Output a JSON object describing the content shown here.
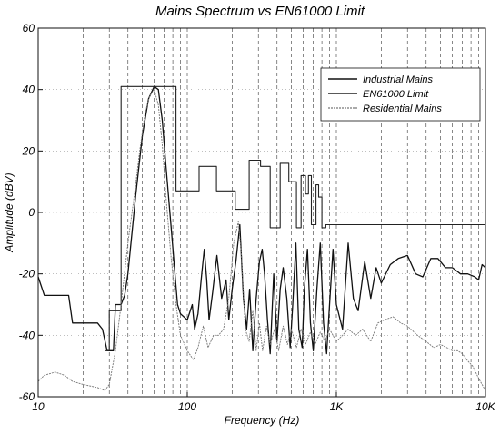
{
  "chart_data": {
    "type": "line",
    "title": "Mains Spectrum vs EN61000 Limit",
    "xlabel": "Frequency (Hz)",
    "ylabel": "Amplitude (dBV)",
    "xscale": "log",
    "xlim": [
      10,
      10000
    ],
    "ylim": [
      -60,
      60
    ],
    "grid": true,
    "legend_position": "top-right",
    "x_ticks": [
      {
        "value": 10,
        "label": "10"
      },
      {
        "value": 100,
        "label": "100"
      },
      {
        "value": 1000,
        "label": "1K"
      },
      {
        "value": 10000,
        "label": "10K"
      }
    ],
    "y_ticks": [
      {
        "value": 60,
        "label": "60"
      },
      {
        "value": 40,
        "label": "40"
      },
      {
        "value": 20,
        "label": "20"
      },
      {
        "value": 0,
        "label": "0"
      },
      {
        "value": -20,
        "label": "-20"
      },
      {
        "value": -40,
        "label": "-40"
      },
      {
        "value": -60,
        "label": "-60"
      }
    ],
    "series": [
      {
        "name": "Industrial Mains",
        "color": "#111111",
        "width": 1.3,
        "points": [
          [
            10,
            -21
          ],
          [
            11,
            -27
          ],
          [
            16,
            -27
          ],
          [
            17,
            -36
          ],
          [
            25,
            -36
          ],
          [
            27,
            -38
          ],
          [
            29,
            -45
          ],
          [
            32,
            -45
          ],
          [
            33,
            -30
          ],
          [
            36,
            -30
          ],
          [
            38,
            -27
          ],
          [
            40,
            -20
          ],
          [
            45,
            5
          ],
          [
            50,
            25
          ],
          [
            55,
            37
          ],
          [
            60,
            41
          ],
          [
            64,
            40
          ],
          [
            68,
            30
          ],
          [
            72,
            15
          ],
          [
            78,
            -5
          ],
          [
            82,
            -18
          ],
          [
            86,
            -30
          ],
          [
            90,
            -33
          ],
          [
            100,
            -35
          ],
          [
            108,
            -30
          ],
          [
            112,
            -38
          ],
          [
            118,
            -33
          ],
          [
            125,
            -20
          ],
          [
            130,
            -12
          ],
          [
            135,
            -22
          ],
          [
            140,
            -35
          ],
          [
            148,
            -26
          ],
          [
            158,
            -14
          ],
          [
            170,
            -28
          ],
          [
            182,
            -22
          ],
          [
            190,
            -35
          ],
          [
            200,
            -25
          ],
          [
            212,
            -16
          ],
          [
            225,
            -4
          ],
          [
            238,
            -28
          ],
          [
            250,
            -38
          ],
          [
            262,
            -25
          ],
          [
            275,
            -45
          ],
          [
            290,
            -28
          ],
          [
            305,
            -16
          ],
          [
            318,
            -12
          ],
          [
            330,
            -20
          ],
          [
            345,
            -35
          ],
          [
            360,
            -46
          ],
          [
            380,
            -20
          ],
          [
            400,
            -42
          ],
          [
            420,
            -25
          ],
          [
            440,
            -18
          ],
          [
            465,
            -28
          ],
          [
            490,
            -44
          ],
          [
            510,
            -30
          ],
          [
            535,
            -10
          ],
          [
            560,
            -38
          ],
          [
            590,
            -44
          ],
          [
            610,
            -25
          ],
          [
            640,
            -12
          ],
          [
            670,
            -36
          ],
          [
            700,
            -45
          ],
          [
            740,
            -25
          ],
          [
            780,
            -10
          ],
          [
            820,
            -36
          ],
          [
            860,
            -46
          ],
          [
            900,
            -30
          ],
          [
            950,
            -12
          ],
          [
            1000,
            -30
          ],
          [
            1100,
            -38
          ],
          [
            1200,
            -10
          ],
          [
            1300,
            -28
          ],
          [
            1400,
            -32
          ],
          [
            1550,
            -16
          ],
          [
            1700,
            -28
          ],
          [
            1850,
            -18
          ],
          [
            2000,
            -23
          ],
          [
            2300,
            -17
          ],
          [
            2600,
            -15
          ],
          [
            3000,
            -14
          ],
          [
            3400,
            -20
          ],
          [
            3800,
            -21
          ],
          [
            4300,
            -15
          ],
          [
            4800,
            -15
          ],
          [
            5400,
            -18
          ],
          [
            6000,
            -18
          ],
          [
            6800,
            -20
          ],
          [
            7600,
            -20
          ],
          [
            8500,
            -21
          ],
          [
            9000,
            -22
          ],
          [
            9500,
            -17
          ],
          [
            10000,
            -18
          ]
        ]
      },
      {
        "name": "EN61000 Limit",
        "color": "#222222",
        "width": 1.1,
        "points": [
          [
            28,
            -45
          ],
          [
            30,
            -45
          ],
          [
            30,
            -32
          ],
          [
            32,
            -32
          ],
          [
            36,
            -32
          ],
          [
            36,
            41
          ],
          [
            84,
            41
          ],
          [
            84,
            7
          ],
          [
            120,
            7
          ],
          [
            120,
            15
          ],
          [
            157,
            15
          ],
          [
            157,
            7
          ],
          [
            210,
            7
          ],
          [
            210,
            1
          ],
          [
            260,
            1
          ],
          [
            260,
            17
          ],
          [
            310,
            17
          ],
          [
            310,
            15
          ],
          [
            360,
            15
          ],
          [
            360,
            -5
          ],
          [
            420,
            -5
          ],
          [
            420,
            16
          ],
          [
            480,
            16
          ],
          [
            480,
            10
          ],
          [
            540,
            10
          ],
          [
            540,
            -5
          ],
          [
            580,
            -5
          ],
          [
            580,
            12
          ],
          [
            620,
            12
          ],
          [
            620,
            6
          ],
          [
            650,
            6
          ],
          [
            650,
            12
          ],
          [
            680,
            12
          ],
          [
            680,
            -4
          ],
          [
            730,
            -4
          ],
          [
            730,
            9
          ],
          [
            760,
            9
          ],
          [
            760,
            5
          ],
          [
            800,
            5
          ],
          [
            800,
            -5
          ],
          [
            850,
            -5
          ],
          [
            850,
            -4
          ],
          [
            10000,
            -4
          ]
        ]
      },
      {
        "name": "Residential Mains",
        "color": "#777777",
        "width": 0.9,
        "dash": "2,1",
        "points": [
          [
            10,
            -55
          ],
          [
            11,
            -53
          ],
          [
            13,
            -52
          ],
          [
            15,
            -53
          ],
          [
            17,
            -55
          ],
          [
            20,
            -56
          ],
          [
            25,
            -57
          ],
          [
            28,
            -58
          ],
          [
            30,
            -56
          ],
          [
            33,
            -45
          ],
          [
            36,
            -30
          ],
          [
            40,
            -10
          ],
          [
            44,
            5
          ],
          [
            48,
            20
          ],
          [
            52,
            32
          ],
          [
            56,
            38
          ],
          [
            60,
            40
          ],
          [
            64,
            35
          ],
          [
            68,
            22
          ],
          [
            72,
            5
          ],
          [
            78,
            -15
          ],
          [
            84,
            -30
          ],
          [
            90,
            -40
          ],
          [
            100,
            -45
          ],
          [
            110,
            -48
          ],
          [
            118,
            -44
          ],
          [
            128,
            -37
          ],
          [
            138,
            -44
          ],
          [
            150,
            -40
          ],
          [
            162,
            -40
          ],
          [
            175,
            -38
          ],
          [
            190,
            -28
          ],
          [
            205,
            -10
          ],
          [
            220,
            -3
          ],
          [
            232,
            -15
          ],
          [
            245,
            -38
          ],
          [
            260,
            -42
          ],
          [
            275,
            -32
          ],
          [
            290,
            -45
          ],
          [
            305,
            -36
          ],
          [
            320,
            -45
          ],
          [
            340,
            -37
          ],
          [
            360,
            -43
          ],
          [
            385,
            -38
          ],
          [
            410,
            -45
          ],
          [
            440,
            -37
          ],
          [
            470,
            -43
          ],
          [
            500,
            -38
          ],
          [
            540,
            -44
          ],
          [
            580,
            -38
          ],
          [
            620,
            -43
          ],
          [
            670,
            -39
          ],
          [
            720,
            -43
          ],
          [
            780,
            -39
          ],
          [
            840,
            -42
          ],
          [
            900,
            -38
          ],
          [
            1000,
            -42
          ],
          [
            1100,
            -40
          ],
          [
            1200,
            -38
          ],
          [
            1350,
            -40
          ],
          [
            1500,
            -38
          ],
          [
            1700,
            -42
          ],
          [
            1900,
            -36
          ],
          [
            2100,
            -35
          ],
          [
            2400,
            -34
          ],
          [
            2700,
            -36
          ],
          [
            3000,
            -37
          ],
          [
            3500,
            -40
          ],
          [
            4000,
            -42
          ],
          [
            4500,
            -44
          ],
          [
            5000,
            -43
          ],
          [
            5500,
            -44
          ],
          [
            6000,
            -45
          ],
          [
            6500,
            -45
          ],
          [
            7000,
            -46
          ],
          [
            7500,
            -48
          ],
          [
            8200,
            -50
          ],
          [
            9000,
            -54
          ],
          [
            10000,
            -58
          ]
        ]
      }
    ]
  }
}
